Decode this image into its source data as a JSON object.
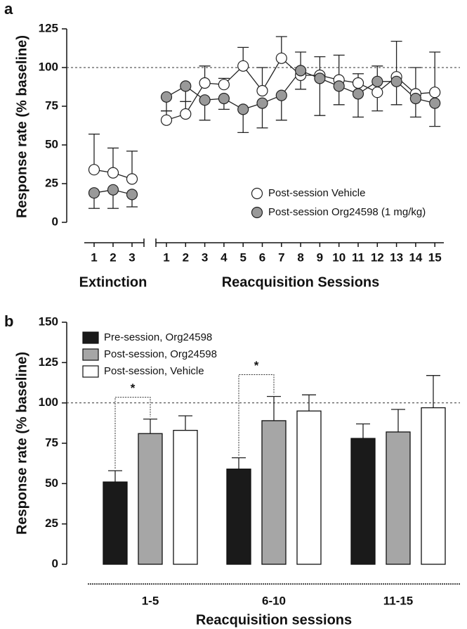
{
  "chart_data": [
    {
      "type": "line",
      "panel": "a",
      "y_label": "Response rate (% baseline)",
      "ylim": [
        0,
        125
      ],
      "yticks": [
        0,
        25,
        50,
        75,
        100,
        125
      ],
      "reference_line": 100,
      "x_groups": [
        {
          "label": "Extinction",
          "categories": [
            "1",
            "2",
            "3"
          ]
        },
        {
          "label": "Reacquisition Sessions",
          "categories": [
            "1",
            "2",
            "3",
            "4",
            "5",
            "6",
            "7",
            "8",
            "9",
            "10",
            "11",
            "12",
            "13",
            "14",
            "15"
          ]
        }
      ],
      "series": [
        {
          "name": "Post-session Vehicle",
          "color": "#ffffff",
          "error_direction": "up",
          "values": [
            [
              34,
              32,
              28
            ],
            [
              66,
              70,
              90,
              89,
              101,
              85,
              106,
              95,
              95,
              92,
              90,
              84,
              94,
              83,
              84
            ]
          ],
          "errors": [
            [
              23,
              16,
              18
            ],
            [
              6,
              8,
              11,
              4,
              12,
              15,
              14,
              15,
              12,
              16,
              6,
              17,
              23,
              17,
              26
            ]
          ]
        },
        {
          "name": "Post-session Org24598 (1 mg/kg)",
          "color": "#999999",
          "error_direction": "down",
          "values": [
            [
              19,
              21,
              18
            ],
            [
              81,
              88,
              79,
              80,
              73,
              77,
              82,
              98,
              93,
              88,
              83,
              91,
              91,
              80,
              77
            ]
          ],
          "errors": [
            [
              10,
              12,
              8
            ],
            [
              9,
              10,
              13,
              7,
              15,
              16,
              16,
              12,
              24,
              12,
              15,
              19,
              15,
              12,
              15
            ]
          ]
        }
      ]
    },
    {
      "type": "bar",
      "panel": "b",
      "y_label": "Response rate (% baseline)",
      "x_label": "Reacquisition sessions",
      "ylim": [
        0,
        150
      ],
      "yticks": [
        0,
        25,
        50,
        75,
        100,
        125,
        150
      ],
      "reference_line": 100,
      "categories": [
        "1-5",
        "6-10",
        "11-15"
      ],
      "series": [
        {
          "name": "Pre-session, Org24598",
          "color": "#1a1a1a",
          "values": [
            51,
            59,
            78
          ],
          "errors": [
            7,
            7,
            9
          ]
        },
        {
          "name": "Post-session, Org24598",
          "color": "#a6a6a6",
          "values": [
            81,
            89,
            82
          ],
          "errors": [
            9,
            15,
            14
          ]
        },
        {
          "name": "Post-session, Vehicle",
          "color": "#ffffff",
          "values": [
            83,
            95,
            97
          ],
          "errors": [
            9,
            10,
            20
          ]
        }
      ],
      "annotations": [
        "*",
        "*"
      ]
    }
  ]
}
